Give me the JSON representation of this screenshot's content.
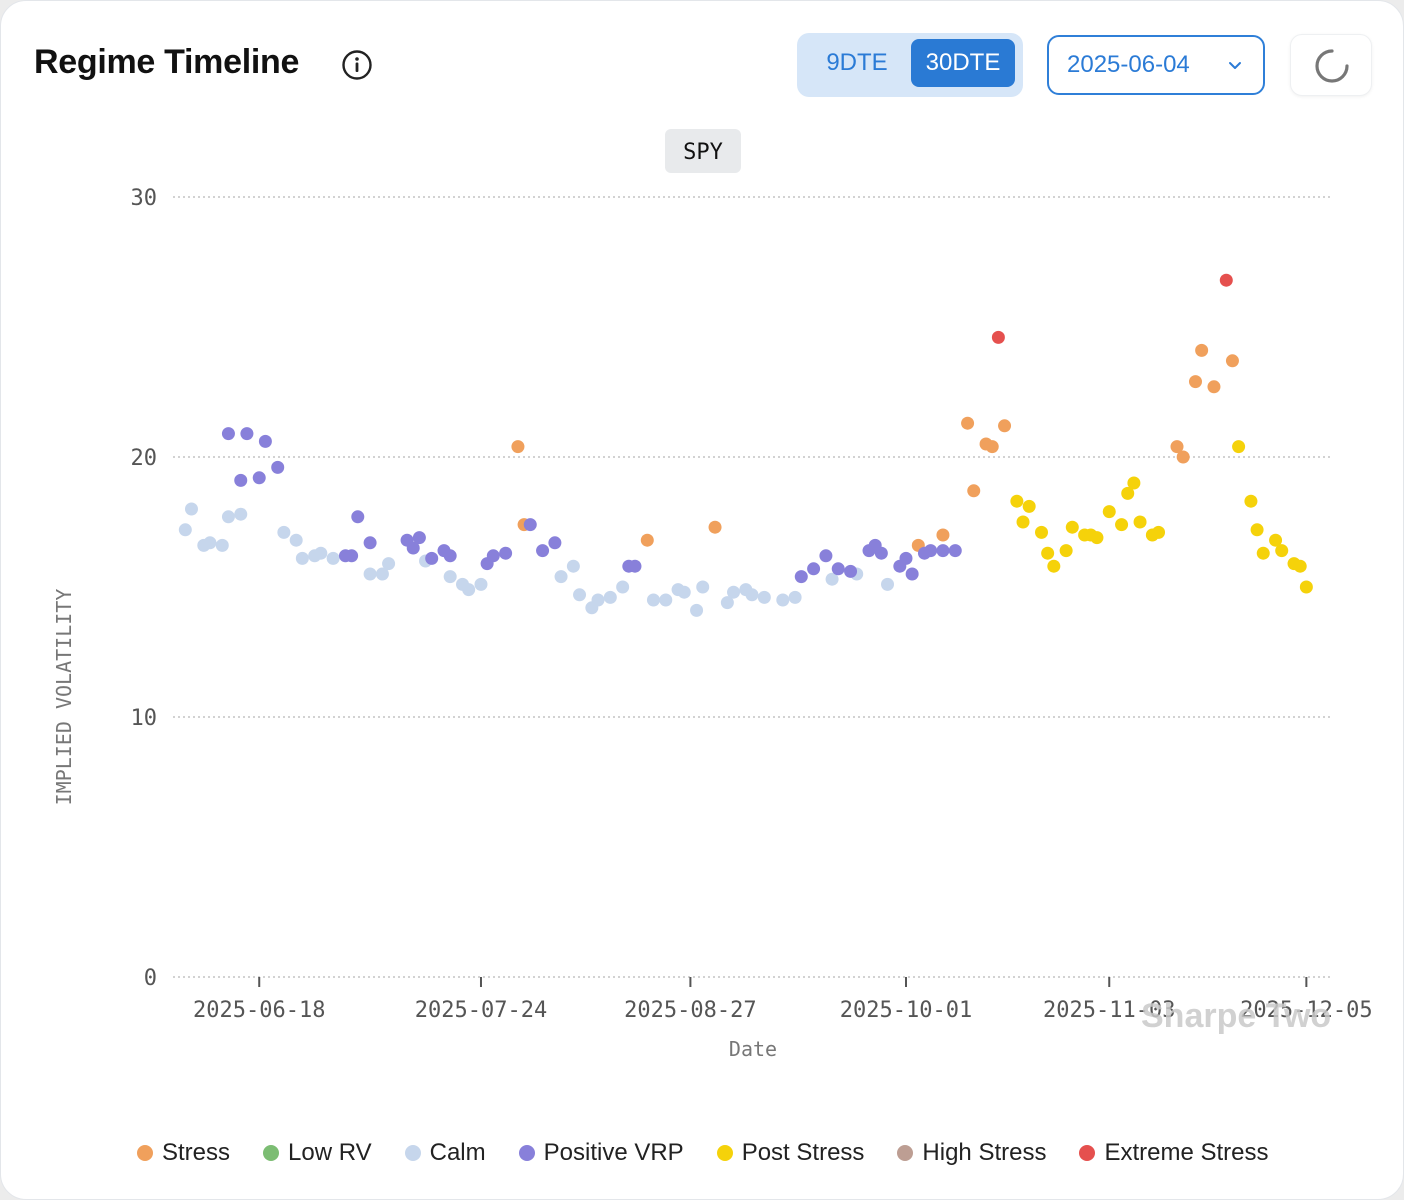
{
  "header": {
    "title": "Regime Timeline",
    "dte_options": [
      "9DTE",
      "30DTE"
    ],
    "dte_selected": "30DTE",
    "date_value": "2025-06-04"
  },
  "chart_data": {
    "type": "scatter",
    "symbol_badge": "SPY",
    "ylabel": "IMPLIED VOLATILITY",
    "xlabel": "Date",
    "ylim": [
      0,
      30
    ],
    "yticks": [
      0,
      10,
      20,
      30
    ],
    "xlim": [
      "2025-06-04",
      "2025-12-09"
    ],
    "xticks": [
      "2025-06-18",
      "2025-07-24",
      "2025-08-27",
      "2025-10-01",
      "2025-11-03",
      "2025-12-05"
    ],
    "grid": true,
    "legend_position": "bottom",
    "watermark": "Sharpe Two",
    "series": [
      {
        "name": "Stress",
        "color": "#f0a05c",
        "points": [
          [
            "2025-07-30",
            20.4
          ],
          [
            "2025-07-31",
            17.4
          ],
          [
            "2025-08-20",
            16.8
          ],
          [
            "2025-08-31",
            17.3
          ],
          [
            "2025-10-03",
            16.6
          ],
          [
            "2025-10-07",
            17.0
          ],
          [
            "2025-10-11",
            21.3
          ],
          [
            "2025-10-12",
            18.7
          ],
          [
            "2025-10-14",
            20.5
          ],
          [
            "2025-10-15",
            20.4
          ],
          [
            "2025-10-17",
            21.2
          ],
          [
            "2025-11-14",
            20.4
          ],
          [
            "2025-11-15",
            20.0
          ],
          [
            "2025-11-17",
            22.9
          ],
          [
            "2025-11-18",
            24.1
          ],
          [
            "2025-11-20",
            22.7
          ],
          [
            "2025-11-23",
            23.7
          ]
        ]
      },
      {
        "name": "Low RV",
        "color": "#7cbd73",
        "points": []
      },
      {
        "name": "Calm",
        "color": "#c6d6ec",
        "points": [
          [
            "2025-06-06",
            17.2
          ],
          [
            "2025-06-07",
            18.0
          ],
          [
            "2025-06-09",
            16.6
          ],
          [
            "2025-06-10",
            16.7
          ],
          [
            "2025-06-12",
            16.6
          ],
          [
            "2025-06-13",
            17.7
          ],
          [
            "2025-06-15",
            17.8
          ],
          [
            "2025-06-22",
            17.1
          ],
          [
            "2025-06-24",
            16.8
          ],
          [
            "2025-06-25",
            16.1
          ],
          [
            "2025-06-27",
            16.2
          ],
          [
            "2025-06-28",
            16.3
          ],
          [
            "2025-06-30",
            16.1
          ],
          [
            "2025-07-06",
            15.5
          ],
          [
            "2025-07-08",
            15.5
          ],
          [
            "2025-07-09",
            15.9
          ],
          [
            "2025-07-15",
            16.0
          ],
          [
            "2025-07-19",
            15.4
          ],
          [
            "2025-07-21",
            15.1
          ],
          [
            "2025-07-22",
            14.9
          ],
          [
            "2025-07-24",
            15.1
          ],
          [
            "2025-08-06",
            15.4
          ],
          [
            "2025-08-08",
            15.8
          ],
          [
            "2025-08-09",
            14.7
          ],
          [
            "2025-08-11",
            14.2
          ],
          [
            "2025-08-12",
            14.5
          ],
          [
            "2025-08-14",
            14.6
          ],
          [
            "2025-08-16",
            15.0
          ],
          [
            "2025-08-21",
            14.5
          ],
          [
            "2025-08-23",
            14.5
          ],
          [
            "2025-08-25",
            14.9
          ],
          [
            "2025-08-26",
            14.8
          ],
          [
            "2025-08-28",
            14.1
          ],
          [
            "2025-08-29",
            15.0
          ],
          [
            "2025-09-02",
            14.4
          ],
          [
            "2025-09-03",
            14.8
          ],
          [
            "2025-09-05",
            14.9
          ],
          [
            "2025-09-06",
            14.7
          ],
          [
            "2025-09-08",
            14.6
          ],
          [
            "2025-09-11",
            14.5
          ],
          [
            "2025-09-13",
            14.6
          ],
          [
            "2025-09-19",
            15.3
          ],
          [
            "2025-09-23",
            15.5
          ],
          [
            "2025-09-28",
            15.1
          ]
        ]
      },
      {
        "name": "Positive VRP",
        "color": "#8880da",
        "points": [
          [
            "2025-06-13",
            20.9
          ],
          [
            "2025-06-15",
            19.1
          ],
          [
            "2025-06-16",
            20.9
          ],
          [
            "2025-06-18",
            19.2
          ],
          [
            "2025-06-19",
            20.6
          ],
          [
            "2025-06-21",
            19.6
          ],
          [
            "2025-07-02",
            16.2
          ],
          [
            "2025-07-03",
            16.2
          ],
          [
            "2025-07-04",
            17.7
          ],
          [
            "2025-07-06",
            16.7
          ],
          [
            "2025-07-12",
            16.8
          ],
          [
            "2025-07-13",
            16.5
          ],
          [
            "2025-07-14",
            16.9
          ],
          [
            "2025-07-16",
            16.1
          ],
          [
            "2025-07-18",
            16.4
          ],
          [
            "2025-07-19",
            16.2
          ],
          [
            "2025-07-25",
            15.9
          ],
          [
            "2025-07-26",
            16.2
          ],
          [
            "2025-07-28",
            16.3
          ],
          [
            "2025-08-01",
            17.4
          ],
          [
            "2025-08-03",
            16.4
          ],
          [
            "2025-08-05",
            16.7
          ],
          [
            "2025-08-17",
            15.8
          ],
          [
            "2025-08-18",
            15.8
          ],
          [
            "2025-09-14",
            15.4
          ],
          [
            "2025-09-16",
            15.7
          ],
          [
            "2025-09-18",
            16.2
          ],
          [
            "2025-09-20",
            15.7
          ],
          [
            "2025-09-22",
            15.6
          ],
          [
            "2025-09-25",
            16.4
          ],
          [
            "2025-09-26",
            16.6
          ],
          [
            "2025-09-27",
            16.3
          ],
          [
            "2025-09-30",
            15.8
          ],
          [
            "2025-10-01",
            16.1
          ],
          [
            "2025-10-02",
            15.5
          ],
          [
            "2025-10-04",
            16.3
          ],
          [
            "2025-10-05",
            16.4
          ],
          [
            "2025-10-07",
            16.4
          ],
          [
            "2025-10-09",
            16.4
          ]
        ]
      },
      {
        "name": "Post Stress",
        "color": "#f5d20a",
        "points": [
          [
            "2025-10-19",
            18.3
          ],
          [
            "2025-10-20",
            17.5
          ],
          [
            "2025-10-21",
            18.1
          ],
          [
            "2025-10-23",
            17.1
          ],
          [
            "2025-10-24",
            16.3
          ],
          [
            "2025-10-25",
            15.8
          ],
          [
            "2025-10-27",
            16.4
          ],
          [
            "2025-10-28",
            17.3
          ],
          [
            "2025-10-30",
            17.0
          ],
          [
            "2025-10-31",
            17.0
          ],
          [
            "2025-11-01",
            16.9
          ],
          [
            "2025-11-03",
            17.9
          ],
          [
            "2025-11-05",
            17.4
          ],
          [
            "2025-11-06",
            18.6
          ],
          [
            "2025-11-07",
            19.0
          ],
          [
            "2025-11-08",
            17.5
          ],
          [
            "2025-11-10",
            17.0
          ],
          [
            "2025-11-11",
            17.1
          ],
          [
            "2025-11-24",
            20.4
          ],
          [
            "2025-11-26",
            18.3
          ],
          [
            "2025-11-27",
            17.2
          ],
          [
            "2025-11-28",
            16.3
          ],
          [
            "2025-11-30",
            16.8
          ],
          [
            "2025-12-01",
            16.4
          ],
          [
            "2025-12-03",
            15.9
          ],
          [
            "2025-12-04",
            15.8
          ],
          [
            "2025-12-05",
            15.0
          ]
        ]
      },
      {
        "name": "High Stress",
        "color": "#bd9e93",
        "points": []
      },
      {
        "name": "Extreme Stress",
        "color": "#e5504e",
        "points": [
          [
            "2025-10-16",
            24.6
          ],
          [
            "2025-11-22",
            26.8
          ]
        ]
      }
    ]
  }
}
